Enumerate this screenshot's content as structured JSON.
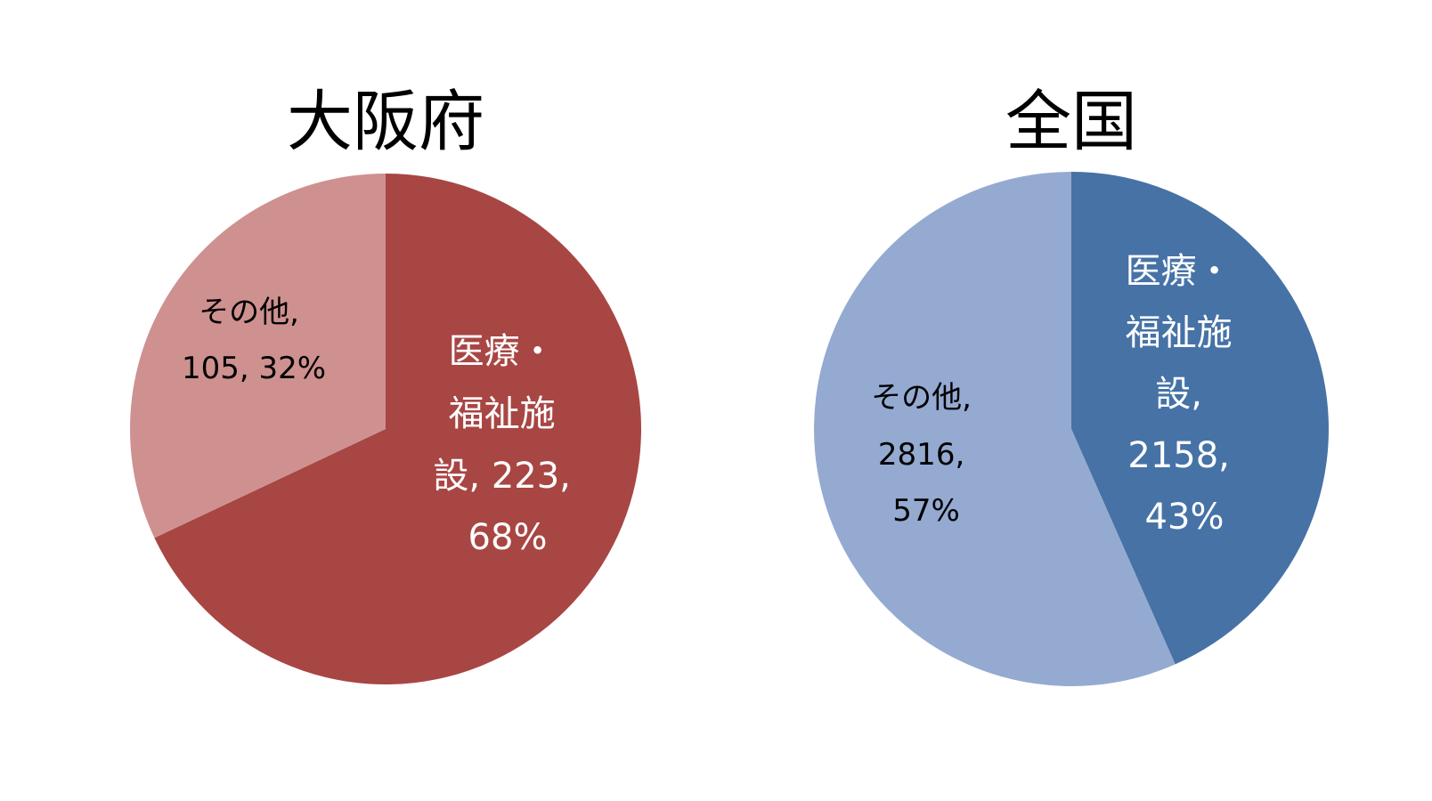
{
  "chart_data": [
    {
      "type": "pie",
      "title": "大阪府",
      "colors": {
        "slice_main": "#A84644",
        "slice_other": "#CE9190",
        "label_main": "#FFFFFF",
        "label_other": "#000000"
      },
      "slices": [
        {
          "category": "医療・福祉施設",
          "value": 223,
          "percent": "68%",
          "label_lines": [
            "医療・",
            "福祉施",
            "設, 223,",
            "68%"
          ]
        },
        {
          "category": "その他",
          "value": 105,
          "percent": "32%",
          "label_lines": [
            "その他,",
            "105, 32%"
          ]
        }
      ]
    },
    {
      "type": "pie",
      "title": "全国",
      "colors": {
        "slice_main": "#4672A6",
        "slice_other": "#95AAD1",
        "label_main": "#FFFFFF",
        "label_other": "#000000"
      },
      "slices": [
        {
          "category": "医療・福祉施設",
          "value": 2158,
          "percent": "43%",
          "label_lines": [
            "医療・",
            "福祉施",
            "設,",
            "2158,",
            "43%"
          ]
        },
        {
          "category": "その他",
          "value": 2816,
          "percent": "57%",
          "label_lines": [
            "その他,",
            "2816,",
            "57%"
          ]
        }
      ]
    }
  ]
}
